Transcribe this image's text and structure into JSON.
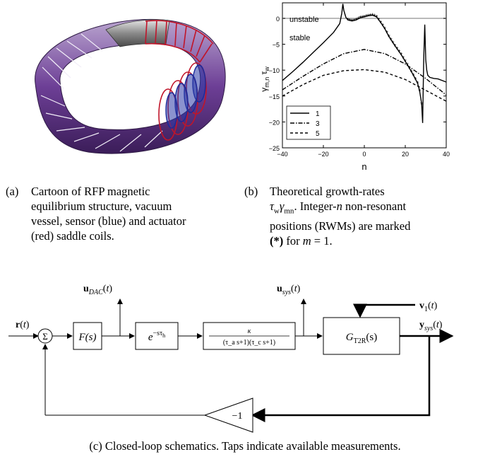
{
  "panel_a": {
    "label": "(a)",
    "lines": [
      "Cartoon of RFP magnetic",
      "equilibrium structure, vacuum",
      "vessel, sensor (blue) and actuator",
      "(red) saddle coils."
    ]
  },
  "panel_b": {
    "label": "(b)",
    "lines": [
      "Theoretical growth-rates",
      "τ_wγ_mn. Integer-n non-resonant",
      "positions (RWMs) are marked",
      "(*) for m = 1."
    ]
  },
  "panel_c": {
    "caption": "(c) Closed-loop schematics. Taps indicate available measurements.",
    "r": "r(t)",
    "sum": "Σ",
    "F": "F(s)",
    "delay": "e^{-sτ_h}",
    "plant_num": "κ",
    "plant_den": "(τ_a s+1)(τ_c s+1)",
    "G": "G_T2R(s)",
    "u_dac": "u_DAC(t)",
    "u_sys": "u_sys(t)",
    "v1": "v_1(t)",
    "y_sys": "y_sys(t)",
    "gain": "−1"
  },
  "chart_data": {
    "type": "line",
    "xlabel": "n",
    "ylabel": "γ_m,n τ_w",
    "xlim": [
      -40,
      40
    ],
    "ylim": [
      -25,
      3
    ],
    "x_ticks": [
      "−40",
      "−20",
      "0",
      "20",
      "40"
    ],
    "y_ticks": [
      "0",
      "−5",
      "−10",
      "−15",
      "−20",
      "−25"
    ],
    "annotations": [
      "unstable",
      "stable"
    ],
    "legend_position": "bottom-left",
    "series": [
      {
        "name": "1",
        "style": "solid",
        "color": "#000000",
        "x": [
          -40,
          -35,
          -30,
          -25,
          -20,
          -15,
          -12,
          -11,
          -10.5,
          -10,
          -9,
          -8,
          -6,
          -4,
          -2,
          0,
          2,
          4,
          6,
          8,
          10,
          12,
          15,
          18,
          20,
          22,
          24,
          26,
          27,
          28
        ],
        "y": [
          -12,
          -10.3,
          -8.5,
          -6.6,
          -4.7,
          -2.7,
          -1,
          1,
          2.8,
          1.5,
          0.2,
          -0.3,
          -0.5,
          -0.3,
          0.1,
          0.3,
          0.5,
          0.6,
          0.3,
          -0.8,
          -2,
          -3.5,
          -5.3,
          -7,
          -8.3,
          -9.6,
          -11,
          -12.5,
          -14,
          -16.5
        ]
      },
      {
        "name": "3",
        "style": "dashdot",
        "color": "#000000",
        "x": [
          -40,
          -30,
          -20,
          -10,
          0,
          10,
          20,
          30,
          40
        ],
        "y": [
          -13.8,
          -11.2,
          -8.8,
          -6.8,
          -6,
          -6.8,
          -8.8,
          -11.6,
          -14.8
        ]
      },
      {
        "name": "5",
        "style": "dashed",
        "color": "#000000",
        "x": [
          -40,
          -30,
          -20,
          -10,
          0,
          10,
          20,
          30,
          40
        ],
        "y": [
          -15,
          -12.8,
          -11,
          -10.1,
          -9.9,
          -10.4,
          -11.8,
          -13.9,
          -16
        ]
      }
    ],
    "spike_series_1": {
      "x": [
        28.5,
        29,
        29.5,
        30,
        30.5,
        31,
        32,
        34,
        36,
        40
      ],
      "y": [
        -20.2,
        -8,
        -1.2,
        -8,
        -10,
        -11,
        -11.4,
        -11.6,
        -11.7,
        -12.3
      ]
    },
    "rwm_marker_x_range": [
      -8,
      28
    ]
  }
}
